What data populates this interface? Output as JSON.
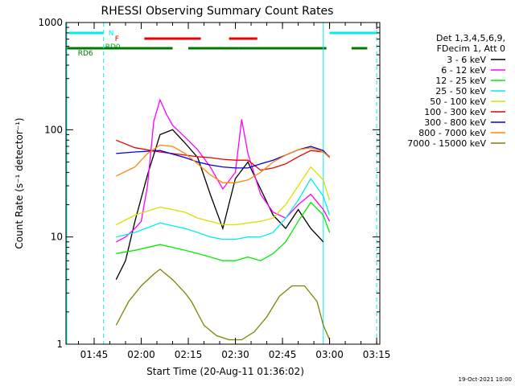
{
  "chart_data": {
    "type": "line",
    "title": "RHESSI Observing Summary Count Rates",
    "xlabel": "Start Time (20-Aug-11 01:36:02)",
    "ylabel": "Count Rate (s⁻¹ detector⁻¹)",
    "y_scale": "log",
    "ylim": [
      1,
      1000
    ],
    "xlim": [
      "01:36:02",
      "03:16:00"
    ],
    "x_ticks": [
      "01:45",
      "02:00",
      "02:15",
      "02:30",
      "02:45",
      "03:00",
      "03:15"
    ],
    "y_ticks": [
      "1",
      "10",
      "100",
      "1000"
    ],
    "grid": false,
    "legend_position": "right",
    "legend_header": [
      "Det 1,3,4,5,6,9,",
      "FDecim 1, Att 0"
    ],
    "footer_date": "19-Oct-2021 10:00",
    "series": [
      {
        "name": "3 - 6 keV",
        "color": "#000000",
        "x": [
          "01:52",
          "01:55",
          "01:58",
          "02:02",
          "02:06",
          "02:10",
          "02:14",
          "02:18",
          "02:22",
          "02:26",
          "02:30",
          "02:34",
          "02:38",
          "02:42",
          "02:46",
          "02:50",
          "02:54",
          "02:58"
        ],
        "y": [
          4,
          6,
          14,
          38,
          90,
          100,
          75,
          55,
          25,
          12,
          35,
          50,
          28,
          16,
          12,
          18,
          12,
          9
        ]
      },
      {
        "name": "6 - 12 keV",
        "color": "#ff00ff",
        "x": [
          "01:52",
          "01:55",
          "01:58",
          "02:00",
          "02:02",
          "02:04",
          "02:06",
          "02:08",
          "02:10",
          "02:14",
          "02:18",
          "02:22",
          "02:26",
          "02:30",
          "02:32",
          "02:34",
          "02:38",
          "02:42",
          "02:46",
          "02:50",
          "02:54",
          "02:58",
          "03:00"
        ],
        "y": [
          9,
          10,
          12,
          14,
          30,
          120,
          190,
          140,
          110,
          85,
          65,
          45,
          28,
          40,
          125,
          60,
          25,
          17,
          15,
          20,
          25,
          18,
          14
        ]
      },
      {
        "name": "12 - 25 keV",
        "color": "#00ee00",
        "x": [
          "01:52",
          "01:58",
          "02:06",
          "02:14",
          "02:18",
          "02:22",
          "02:26",
          "02:30",
          "02:34",
          "02:38",
          "02:42",
          "02:46",
          "02:50",
          "02:54",
          "02:58",
          "03:00"
        ],
        "y": [
          7,
          7.5,
          8.5,
          7.5,
          7,
          6.5,
          6,
          6,
          6.5,
          6,
          7,
          9,
          14,
          21,
          16,
          11
        ]
      },
      {
        "name": "25 - 50 keV",
        "color": "#00eeee",
        "x": [
          "01:52",
          "01:58",
          "02:06",
          "02:14",
          "02:18",
          "02:22",
          "02:26",
          "02:30",
          "02:34",
          "02:38",
          "02:42",
          "02:46",
          "02:50",
          "02:54",
          "02:58",
          "03:00"
        ],
        "y": [
          10,
          11,
          13.5,
          12,
          11,
          10,
          9.5,
          9.5,
          10,
          10,
          11,
          15,
          22,
          35,
          24,
          16
        ]
      },
      {
        "name": "50 - 100 keV",
        "color": "#dddd00",
        "x": [
          "01:52",
          "01:58",
          "02:06",
          "02:14",
          "02:18",
          "02:22",
          "02:26",
          "02:30",
          "02:34",
          "02:38",
          "02:42",
          "02:46",
          "02:50",
          "02:54",
          "02:58",
          "03:00"
        ],
        "y": [
          13,
          16,
          19,
          17,
          15,
          14,
          13,
          13,
          13.5,
          14,
          15,
          20,
          30,
          45,
          34,
          22
        ]
      },
      {
        "name": "100 - 300 keV",
        "color": "#ee0000",
        "x": [
          "01:52",
          "01:58",
          "02:06",
          "02:14",
          "02:18",
          "02:22",
          "02:26",
          "02:30",
          "02:34",
          "02:38",
          "02:42",
          "02:46",
          "02:50",
          "02:54",
          "02:58",
          "03:00"
        ],
        "y": [
          80,
          68,
          62,
          58,
          56,
          55,
          53,
          52,
          52,
          42,
          44,
          48,
          56,
          64,
          62,
          56
        ]
      },
      {
        "name": "300 - 800 keV",
        "color": "#0000dd",
        "x": [
          "01:52",
          "01:58",
          "02:06",
          "02:14",
          "02:18",
          "02:22",
          "02:26",
          "02:30",
          "02:34",
          "02:38",
          "02:42",
          "02:46",
          "02:50",
          "02:54",
          "02:58",
          "03:00"
        ],
        "y": [
          60,
          62,
          64,
          55,
          50,
          47,
          45,
          44,
          44,
          48,
          52,
          58,
          65,
          70,
          64,
          55
        ]
      },
      {
        "name": "800 - 7000 keV",
        "color": "#ff8800",
        "x": [
          "01:52",
          "01:58",
          "02:02",
          "02:06",
          "02:10",
          "02:14",
          "02:18",
          "02:22",
          "02:26",
          "02:30",
          "02:34",
          "02:38",
          "02:42",
          "02:46",
          "02:50",
          "02:54",
          "02:58",
          "03:00"
        ],
        "y": [
          37,
          45,
          60,
          72,
          70,
          60,
          48,
          38,
          32,
          32,
          34,
          40,
          50,
          58,
          65,
          68,
          62,
          55
        ]
      },
      {
        "name": "7000 - 15000 keV",
        "color": "#808000",
        "x": [
          "01:52",
          "01:56",
          "02:00",
          "02:04",
          "02:06",
          "02:10",
          "02:14",
          "02:16",
          "02:20",
          "02:24",
          "02:28",
          "02:32",
          "02:36",
          "02:40",
          "02:44",
          "02:48",
          "02:52",
          "02:56",
          "02:58",
          "03:00"
        ],
        "y": [
          1.5,
          2.5,
          3.5,
          4.5,
          5,
          4,
          3,
          2.5,
          1.5,
          1.2,
          1.1,
          1.1,
          1.3,
          1.8,
          2.8,
          3.5,
          3.5,
          2.5,
          1.5,
          1.1
        ]
      }
    ],
    "flags": [
      {
        "label": "N",
        "color": "#00eeee",
        "segments": [
          [
            "01:37",
            "01:48"
          ],
          [
            "03:00",
            "03:15"
          ]
        ]
      },
      {
        "label": "F",
        "color": "#ee0000",
        "segments": [
          [
            "02:01",
            "02:19"
          ],
          [
            "02:28",
            "02:37"
          ]
        ]
      },
      {
        "label": "RD0",
        "color": "#00aa00",
        "segments": []
      },
      {
        "label": "RD6",
        "color": "#007700",
        "segments": [
          [
            "01:36",
            "01:53"
          ],
          [
            "01:53",
            "02:10"
          ],
          [
            "02:15",
            "02:31"
          ],
          [
            "02:31",
            "02:59"
          ],
          [
            "03:07",
            "03:12"
          ]
        ]
      }
    ],
    "vertical_markers": [
      {
        "time": "01:48",
        "color": "#00eeee",
        "style": "dashed"
      },
      {
        "time": "02:58",
        "color": "#00eeee",
        "style": "solid"
      },
      {
        "time": "03:15",
        "color": "#00eeee",
        "style": "dashed"
      }
    ]
  }
}
